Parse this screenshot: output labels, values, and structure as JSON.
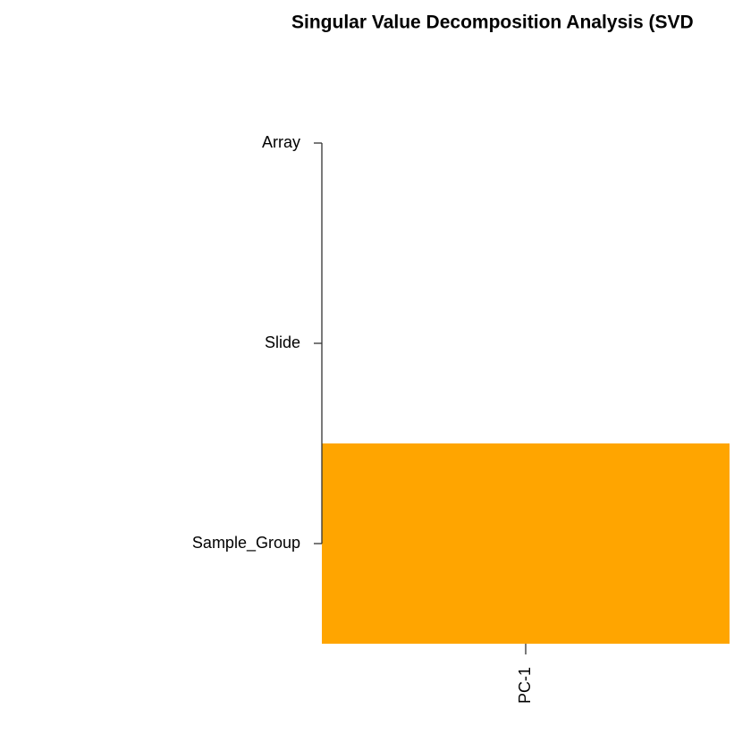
{
  "chart_data": {
    "type": "heatmap",
    "title": "Singular Value Decomposition Analysis (SVD",
    "rows": [
      "Array",
      "Slide",
      "Sample_Group"
    ],
    "columns": [
      "PC-1"
    ],
    "cell_colors": [
      [
        "#ffffff"
      ],
      [
        "#ffffff"
      ],
      [
        "#ffa500"
      ]
    ]
  }
}
